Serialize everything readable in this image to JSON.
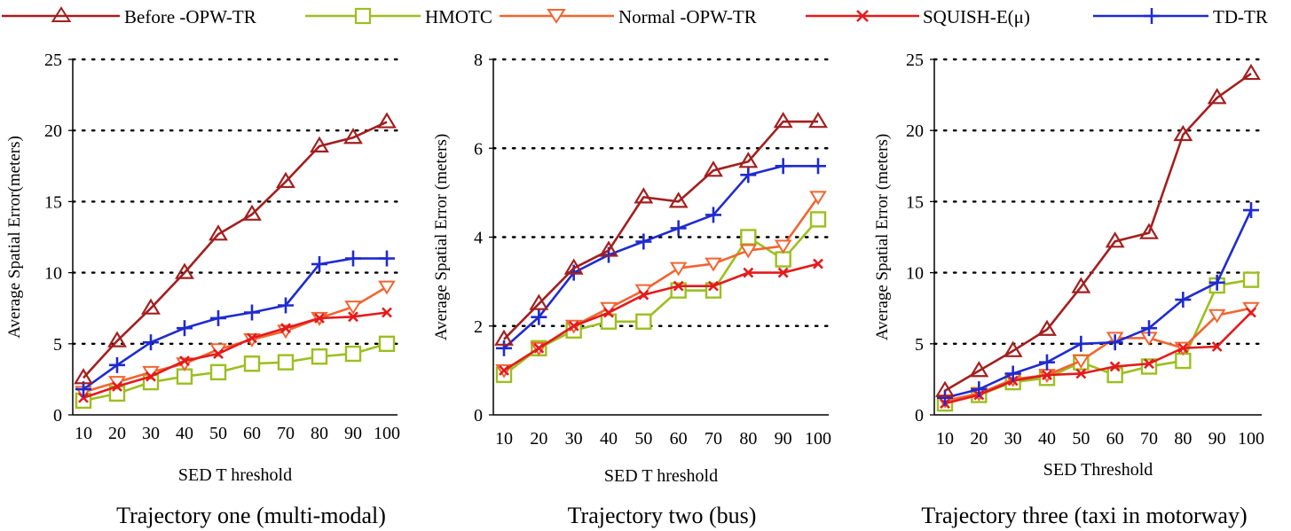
{
  "legend": [
    {
      "label": "Before -OPW-TR",
      "color": "#A31F1F",
      "marker": "triangle-up-icon"
    },
    {
      "label": "HMOTC",
      "color": "#9CBF1E",
      "marker": "square-icon"
    },
    {
      "label": "Normal -OPW-TR",
      "color": "#F26430",
      "marker": "triangle-down-icon"
    },
    {
      "label": "SQUISH-E(μ)",
      "color": "#E41A1C",
      "marker": "cross-icon"
    },
    {
      "label": "TD-TR",
      "color": "#1F2BD0",
      "marker": "plus-icon"
    }
  ],
  "chart_data": [
    {
      "type": "line",
      "title": "Trajectory one (multi-modal)",
      "xlabel": "SED T hreshold",
      "ylabel": "Average Spatial Error(meters)",
      "x": [
        10,
        20,
        30,
        40,
        50,
        60,
        70,
        80,
        90,
        100
      ],
      "xticks": [
        "10",
        "20",
        "30",
        "40",
        "50",
        "60",
        "70",
        "80",
        "90",
        "100"
      ],
      "ylim": [
        0,
        25
      ],
      "yticks": [
        0,
        5,
        10,
        15,
        20,
        25
      ],
      "grid": "horizontal-dotted",
      "series": [
        {
          "name": "Before -OPW-TR",
          "values": [
            2.6,
            5.2,
            7.5,
            10.0,
            12.7,
            14.1,
            16.4,
            18.9,
            19.5,
            20.6
          ]
        },
        {
          "name": "HMOTC",
          "values": [
            1.0,
            1.5,
            2.3,
            2.7,
            3.0,
            3.6,
            3.7,
            4.1,
            4.3,
            5.0
          ]
        },
        {
          "name": "Normal -OPW-TR",
          "values": [
            1.6,
            2.3,
            3.0,
            3.6,
            4.6,
            5.3,
            5.9,
            6.8,
            7.6,
            9.0
          ]
        },
        {
          "name": "SQUISH-E(μ)",
          "values": [
            1.2,
            2.0,
            2.7,
            3.8,
            4.3,
            5.4,
            6.1,
            6.8,
            6.9,
            7.2
          ]
        },
        {
          "name": "TD-TR",
          "values": [
            1.8,
            3.5,
            5.1,
            6.1,
            6.8,
            7.2,
            7.7,
            10.6,
            11.0,
            11.0
          ]
        }
      ]
    },
    {
      "type": "line",
      "title": "Trajectory two (bus)",
      "xlabel": "SED T hreshold",
      "ylabel": "Average Spatial Error (meters)",
      "x": [
        10,
        20,
        30,
        40,
        50,
        60,
        70,
        80,
        90,
        100
      ],
      "xticks": [
        "10",
        "20",
        "30",
        "40",
        "50",
        "60",
        "70",
        "80",
        "90",
        "100"
      ],
      "ylim": [
        0,
        8
      ],
      "yticks": [
        0,
        2,
        4,
        6,
        8
      ],
      "grid": "horizontal-dotted",
      "series": [
        {
          "name": "Before -OPW-TR",
          "values": [
            1.7,
            2.5,
            3.3,
            3.7,
            4.9,
            4.8,
            5.5,
            5.7,
            6.6,
            6.6
          ]
        },
        {
          "name": "HMOTC",
          "values": [
            0.9,
            1.5,
            1.9,
            2.1,
            2.1,
            2.8,
            2.8,
            4.0,
            3.5,
            4.4
          ]
        },
        {
          "name": "Normal -OPW-TR",
          "values": [
            1.0,
            1.5,
            2.0,
            2.4,
            2.8,
            3.3,
            3.4,
            3.7,
            3.8,
            4.9
          ]
        },
        {
          "name": "SQUISH-E(μ)",
          "values": [
            1.0,
            1.5,
            2.0,
            2.3,
            2.7,
            2.9,
            2.9,
            3.2,
            3.2,
            3.4
          ]
        },
        {
          "name": "TD-TR",
          "values": [
            1.5,
            2.2,
            3.2,
            3.6,
            3.9,
            4.2,
            4.5,
            5.4,
            5.6,
            5.6
          ]
        }
      ]
    },
    {
      "type": "line",
      "title": "Trajectory three (taxi in motorway)",
      "xlabel": "SED Threshold",
      "ylabel": "Average Spatial Error (meters)",
      "x": [
        10,
        20,
        30,
        40,
        50,
        60,
        70,
        80,
        90,
        100
      ],
      "xticks": [
        "10",
        "20",
        "30",
        "40",
        "50",
        "60",
        "70",
        "80",
        "90",
        "100"
      ],
      "ylim": [
        0,
        25
      ],
      "yticks": [
        0,
        5,
        10,
        15,
        20,
        25
      ],
      "grid": "horizontal-dotted",
      "series": [
        {
          "name": "Before -OPW-TR",
          "values": [
            1.7,
            3.1,
            4.5,
            6.0,
            9.0,
            12.2,
            12.8,
            19.7,
            22.3,
            24.0
          ]
        },
        {
          "name": "HMOTC",
          "values": [
            0.8,
            1.4,
            2.3,
            2.6,
            3.7,
            2.8,
            3.4,
            3.8,
            9.1,
            9.5
          ]
        },
        {
          "name": "Normal -OPW-TR",
          "values": [
            1.0,
            1.5,
            2.5,
            2.8,
            3.8,
            5.4,
            5.4,
            4.7,
            7.0,
            7.5
          ]
        },
        {
          "name": "SQUISH-E(μ)",
          "values": [
            0.8,
            1.4,
            2.4,
            2.8,
            2.9,
            3.4,
            3.6,
            4.7,
            4.8,
            7.2
          ]
        },
        {
          "name": "TD-TR",
          "values": [
            1.2,
            1.8,
            2.9,
            3.7,
            5.0,
            5.1,
            6.1,
            8.1,
            9.3,
            14.4
          ]
        }
      ]
    }
  ]
}
